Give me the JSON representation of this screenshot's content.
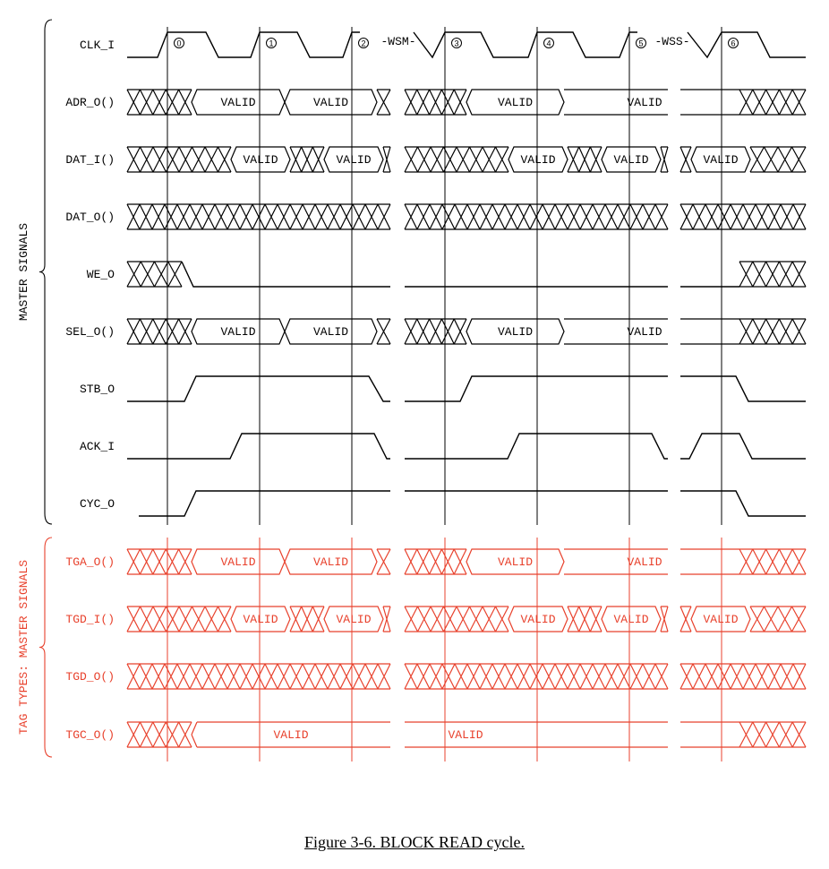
{
  "caption": "Figure 3-6.  BLOCK READ cycle.",
  "groups": {
    "master": {
      "label": "MASTER SIGNALS",
      "color": "#000000"
    },
    "tag": {
      "label": "TAG TYPES: MASTER SIGNALS",
      "color": "#e8412c"
    }
  },
  "clock": {
    "name": "CLK_I",
    "edges": [
      "0",
      "1",
      "2",
      "3",
      "4",
      "5",
      "6"
    ],
    "wait_labels": {
      "wsm": "-WSM-",
      "wss": "-WSS-"
    }
  },
  "valid_text": "VALID",
  "signals": [
    {
      "name": "ADR_O()",
      "group": "master",
      "kind": "bus",
      "pattern": "adr"
    },
    {
      "name": "DAT_I()",
      "group": "master",
      "kind": "bus",
      "pattern": "dat"
    },
    {
      "name": "DAT_O()",
      "group": "master",
      "kind": "bus",
      "pattern": "allx"
    },
    {
      "name": "WE_O",
      "group": "master",
      "kind": "level",
      "pattern": "we"
    },
    {
      "name": "SEL_O()",
      "group": "master",
      "kind": "bus",
      "pattern": "adr"
    },
    {
      "name": "STB_O",
      "group": "master",
      "kind": "level",
      "pattern": "stb"
    },
    {
      "name": "ACK_I",
      "group": "master",
      "kind": "level",
      "pattern": "ack"
    },
    {
      "name": "CYC_O",
      "group": "master",
      "kind": "level",
      "pattern": "cyc"
    },
    {
      "name": "TGA_O()",
      "group": "tag",
      "kind": "bus",
      "pattern": "adr"
    },
    {
      "name": "TGD_I()",
      "group": "tag",
      "kind": "bus",
      "pattern": "dat"
    },
    {
      "name": "TGD_O()",
      "group": "tag",
      "kind": "bus",
      "pattern": "allx"
    },
    {
      "name": "TGC_O()",
      "group": "tag",
      "kind": "bus",
      "pattern": "tgc"
    }
  ]
}
